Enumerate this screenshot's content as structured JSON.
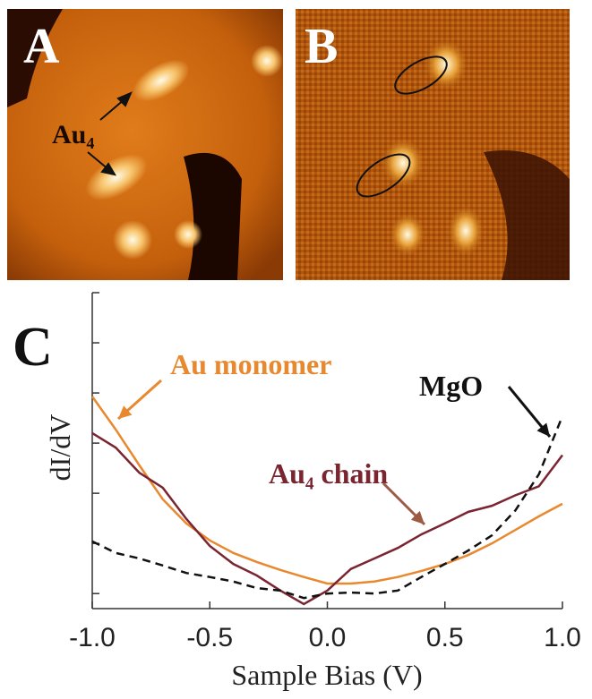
{
  "panels": {
    "a": {
      "label": "A",
      "annotation": "Au₄"
    },
    "b": {
      "label": "B"
    }
  },
  "chart_data": {
    "type": "line",
    "panel_label": "C",
    "x_label": "Sample Bias (V)",
    "y_label": "dI/dV",
    "x": [
      -1.0,
      -0.9,
      -0.8,
      -0.7,
      -0.6,
      -0.5,
      -0.4,
      -0.3,
      -0.2,
      -0.1,
      0.0,
      0.1,
      0.2,
      0.3,
      0.4,
      0.5,
      0.6,
      0.7,
      0.8,
      0.9,
      1.0
    ],
    "series": [
      {
        "name": "Au monomer",
        "color": "#e8892f",
        "dash": false,
        "values": [
          3.93,
          3.27,
          2.56,
          1.88,
          1.4,
          1.06,
          0.81,
          0.63,
          0.47,
          0.33,
          0.2,
          0.2,
          0.24,
          0.33,
          0.45,
          0.59,
          0.77,
          1.0,
          1.27,
          1.54,
          1.79
        ]
      },
      {
        "name": "Au₄ chain",
        "color": "#7a2530",
        "dash": false,
        "values": [
          3.2,
          2.91,
          2.41,
          2.11,
          1.49,
          0.95,
          0.59,
          0.36,
          0.06,
          -0.21,
          0.06,
          0.49,
          0.7,
          0.91,
          1.18,
          1.4,
          1.63,
          1.75,
          1.96,
          2.14,
          2.76
        ]
      },
      {
        "name": "MgO",
        "color": "#111111",
        "dash": true,
        "values": [
          1.04,
          0.81,
          0.7,
          0.56,
          0.41,
          0.33,
          0.24,
          0.11,
          0.06,
          -0.09,
          0.0,
          0.02,
          0.0,
          0.06,
          0.33,
          0.59,
          0.86,
          1.16,
          1.66,
          2.38,
          3.54
        ]
      }
    ],
    "xlim": [
      -1.0,
      1.0
    ],
    "xticks": [
      {
        "value": -1.0,
        "label": "-1.0"
      },
      {
        "value": -0.5,
        "label": "-0.5"
      },
      {
        "value": 0.0,
        "label": "0.0"
      },
      {
        "value": 0.5,
        "label": "0.5"
      },
      {
        "value": 1.0,
        "label": "1.0"
      }
    ],
    "ylim": [
      -0.3,
      6.0
    ],
    "yticks": [
      0,
      1,
      2,
      3,
      4,
      5,
      6
    ]
  }
}
